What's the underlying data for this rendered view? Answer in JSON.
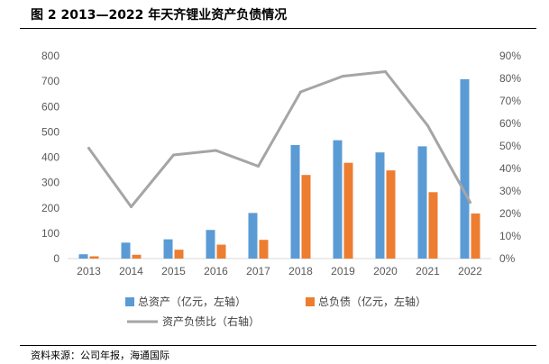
{
  "header": {
    "figure_title": "图 2  2013—2022 年天齐锂业资产负债情况"
  },
  "footer": {
    "source": "资料来源：公司年报，海通国际"
  },
  "chart_data": {
    "type": "bar",
    "categories": [
      "2013",
      "2014",
      "2015",
      "2016",
      "2017",
      "2018",
      "2019",
      "2020",
      "2021",
      "2022"
    ],
    "series": [
      {
        "name": "总资产（亿元，左轴）",
        "type": "bar",
        "axis": "left",
        "color": "#5b9bd5",
        "values": [
          17,
          63,
          76,
          113,
          180,
          448,
          467,
          419,
          443,
          708
        ]
      },
      {
        "name": "总负债（亿元，左轴）",
        "type": "bar",
        "axis": "left",
        "color": "#ed7d31",
        "values": [
          9,
          15,
          35,
          55,
          74,
          330,
          378,
          348,
          262,
          178
        ]
      },
      {
        "name": "资产负债比（右轴）",
        "type": "line",
        "axis": "right",
        "color": "#a5a5a5",
        "values": [
          49,
          23,
          46,
          48,
          41,
          74,
          81,
          83,
          59,
          25
        ]
      }
    ],
    "y_left": {
      "min": 0,
      "max": 800,
      "step": 100,
      "ticks": [
        "0",
        "100",
        "200",
        "300",
        "400",
        "500",
        "600",
        "700",
        "800"
      ]
    },
    "y_right": {
      "min": 0,
      "max": 90,
      "step": 10,
      "ticks": [
        "0%",
        "10%",
        "20%",
        "30%",
        "40%",
        "50%",
        "60%",
        "70%",
        "80%",
        "90%"
      ]
    },
    "grid": false,
    "legend_position": "bottom"
  }
}
